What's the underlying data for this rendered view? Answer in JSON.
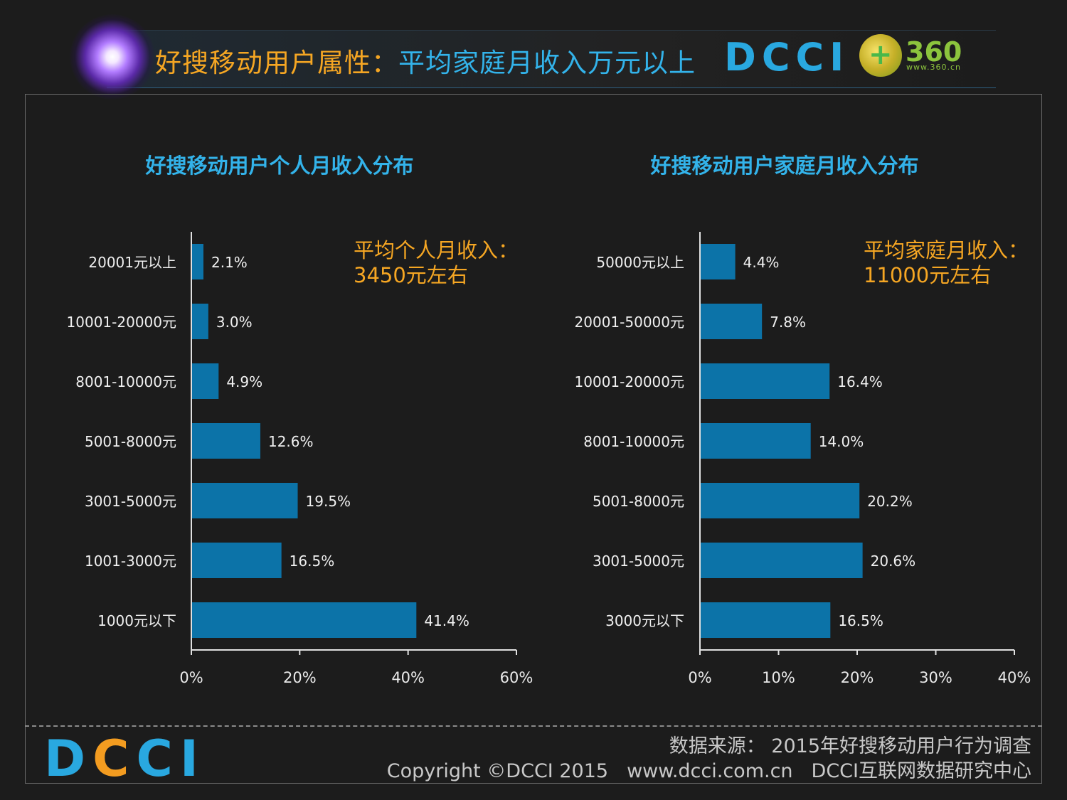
{
  "header": {
    "title_part1": "好搜移动用户属性：",
    "title_part2": "平均家庭月收入万元以上",
    "logo_dcci": "DCCI",
    "logo_360": "360",
    "logo_360_url": "www.360.cn"
  },
  "footer": {
    "logo_part1": "D",
    "logo_part2": "C",
    "logo_part3": "CI",
    "source": "数据来源： 2015年好搜移动用户行为调查",
    "copyright": "Copyright ©DCCI 2015",
    "website": "www.dcci.com.cn",
    "org": "DCCI互联网数据研究中心"
  },
  "colors": {
    "bar": "#0c73a8",
    "title_blue": "#33b3ea",
    "accent_orange": "#f5a623"
  },
  "chart_data": [
    {
      "type": "bar",
      "orientation": "horizontal",
      "title": "好搜移动用户个人月收入分布",
      "annotation": [
        "平均个人月收入：",
        "3450元左右"
      ],
      "categories": [
        "20001元以上",
        "10001-20000元",
        "8001-10000元",
        "5001-8000元",
        "3001-5000元",
        "1001-3000元",
        "1000元以下"
      ],
      "values": [
        2.1,
        3.0,
        4.9,
        12.6,
        19.5,
        16.5,
        41.4
      ],
      "value_labels": [
        "2.1%",
        "3.0%",
        "4.9%",
        "12.6%",
        "19.5%",
        "16.5%",
        "41.4%"
      ],
      "xlim": [
        0,
        60
      ],
      "xticks": [
        "0%",
        "20%",
        "40%",
        "60%"
      ],
      "grid": false
    },
    {
      "type": "bar",
      "orientation": "horizontal",
      "title": "好搜移动用户家庭月收入分布",
      "annotation": [
        "平均家庭月收入：",
        "11000元左右"
      ],
      "categories": [
        "50000元以上",
        "20001-50000元",
        "10001-20000元",
        "8001-10000元",
        "5001-8000元",
        "3001-5000元",
        "3000元以下"
      ],
      "values": [
        4.4,
        7.8,
        16.4,
        14.0,
        20.2,
        20.6,
        16.5
      ],
      "value_labels": [
        "4.4%",
        "7.8%",
        "16.4%",
        "14.0%",
        "20.2%",
        "20.6%",
        "16.5%"
      ],
      "xlim": [
        0,
        40
      ],
      "xticks": [
        "0%",
        "10%",
        "20%",
        "30%",
        "40%"
      ],
      "grid": false
    }
  ]
}
